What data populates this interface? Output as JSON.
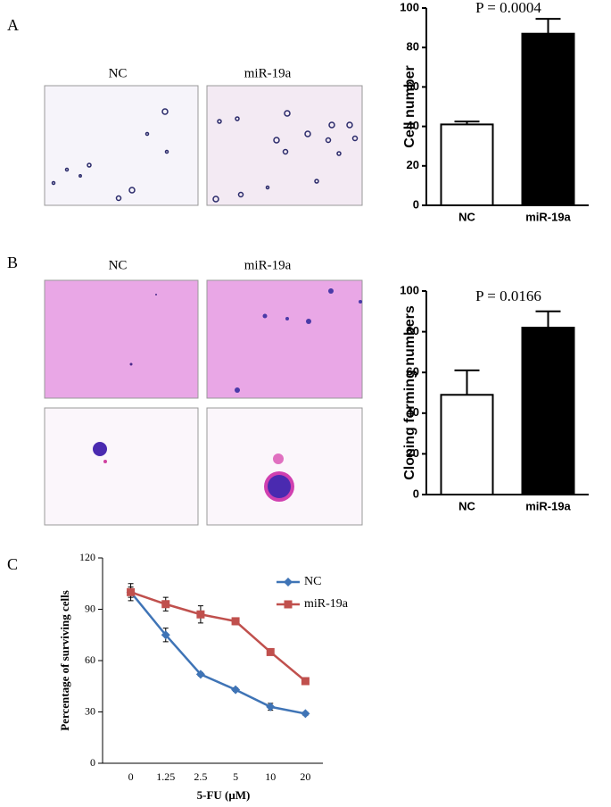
{
  "panels": [
    {
      "label": "A",
      "image_captions": [
        "NC",
        "miR-19a"
      ]
    },
    {
      "label": "B",
      "image_captions": [
        "NC",
        "miR-19a"
      ]
    },
    {
      "label": "C"
    }
  ],
  "chart_data": [
    {
      "type": "bar",
      "annotation": "P = 0.0004",
      "y_label": "Cell number",
      "categories": [
        "NC",
        "miR-19a"
      ],
      "values": [
        41,
        87
      ],
      "errors": [
        1.5,
        7.5
      ],
      "colors": [
        "#ffffff",
        "#000000"
      ],
      "ylim": [
        0,
        100
      ],
      "yticks": [
        0,
        20,
        40,
        60,
        80,
        100
      ]
    },
    {
      "type": "bar",
      "annotation": "P = 0.0166",
      "y_label": "Cloning forming numbers",
      "categories": [
        "NC",
        "miR-19a"
      ],
      "values": [
        49,
        82
      ],
      "errors": [
        12,
        8
      ],
      "colors": [
        "#ffffff",
        "#000000"
      ],
      "ylim": [
        0,
        100
      ],
      "yticks": [
        0,
        20,
        40,
        60,
        80,
        100
      ]
    },
    {
      "type": "line",
      "x_label": "5-FU (μM)",
      "y_label": "Percentage of surviving cells",
      "categories": [
        "0",
        "1.25",
        "2.5",
        "5",
        "10",
        "20"
      ],
      "series": [
        {
          "name": "NC",
          "color": "#3f74b6",
          "marker": "diamond",
          "values": [
            100,
            75,
            52,
            43,
            33,
            29
          ],
          "errors": [
            5,
            4,
            1,
            1,
            2,
            1
          ]
        },
        {
          "name": "miR-19a",
          "color": "#c0504d",
          "marker": "square",
          "values": [
            100,
            93,
            87,
            83,
            65,
            48
          ],
          "errors": [
            3,
            4,
            5,
            2,
            1,
            1
          ]
        }
      ],
      "ylim": [
        0,
        120
      ],
      "yticks": [
        0,
        30,
        60,
        90,
        120
      ]
    }
  ]
}
